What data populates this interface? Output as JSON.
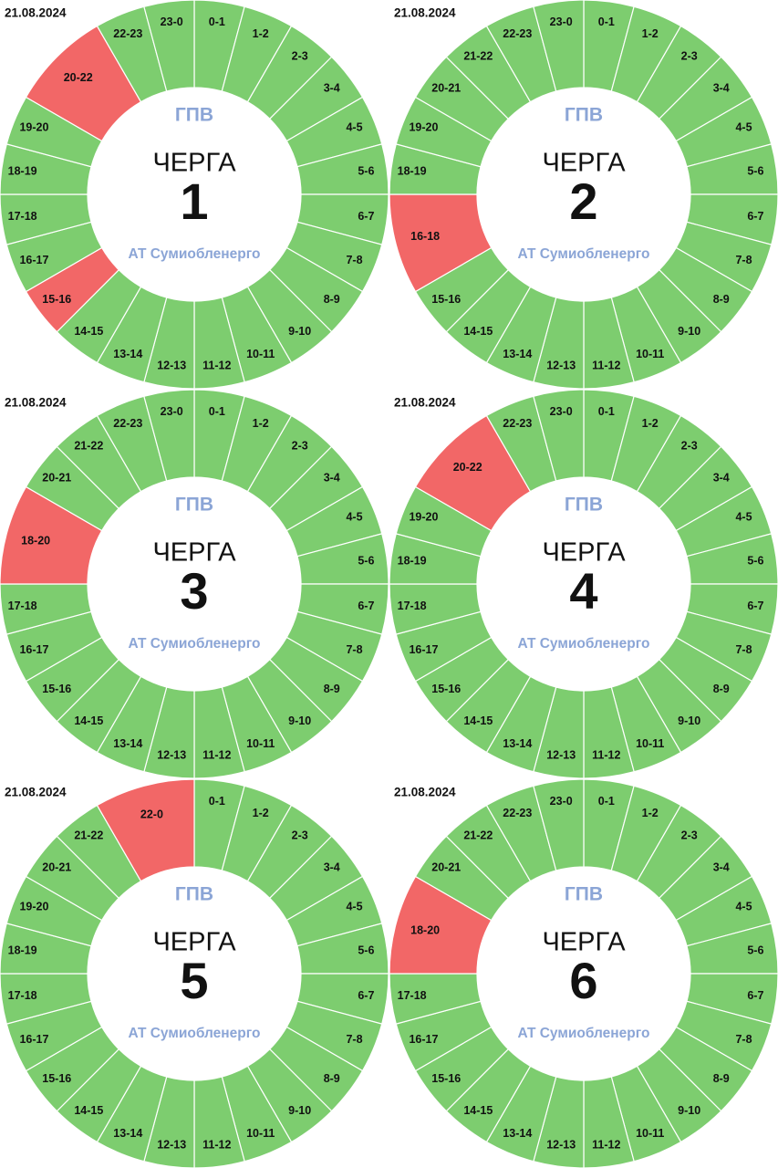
{
  "colors": {
    "on": "#7dcd6f",
    "off": "#f26767",
    "accent": "#8ba5d6",
    "divider": "#ffffff"
  },
  "center": {
    "top": "ГПВ",
    "queue_label": "ЧЕРГА",
    "org": "АТ Сумиобленерго"
  },
  "chart_data": [
    {
      "type": "pie",
      "title": "ЧЕРГА 1",
      "queue": "1",
      "date": "21.08.2024",
      "segments": [
        [
          "0-1",
          0,
          1,
          0
        ],
        [
          "1-2",
          1,
          2,
          0
        ],
        [
          "2-3",
          2,
          3,
          0
        ],
        [
          "3-4",
          3,
          4,
          0
        ],
        [
          "4-5",
          4,
          5,
          0
        ],
        [
          "5-6",
          5,
          6,
          0
        ],
        [
          "6-7",
          6,
          7,
          0
        ],
        [
          "7-8",
          7,
          8,
          0
        ],
        [
          "8-9",
          8,
          9,
          0
        ],
        [
          "9-10",
          9,
          10,
          0
        ],
        [
          "10-11",
          10,
          11,
          0
        ],
        [
          "11-12",
          11,
          12,
          0
        ],
        [
          "12-13",
          12,
          13,
          0
        ],
        [
          "13-14",
          13,
          14,
          0
        ],
        [
          "14-15",
          14,
          15,
          0
        ],
        [
          "15-16",
          15,
          16,
          1
        ],
        [
          "16-17",
          16,
          17,
          0
        ],
        [
          "17-18",
          17,
          18,
          0
        ],
        [
          "18-19",
          18,
          19,
          0
        ],
        [
          "19-20",
          19,
          20,
          0
        ],
        [
          "20-22",
          20,
          22,
          1
        ],
        [
          "22-23",
          22,
          23,
          0
        ],
        [
          "23-0",
          23,
          24,
          0
        ]
      ]
    },
    {
      "type": "pie",
      "title": "ЧЕРГА 2",
      "queue": "2",
      "date": "21.08.2024",
      "segments": [
        [
          "0-1",
          0,
          1,
          0
        ],
        [
          "1-2",
          1,
          2,
          0
        ],
        [
          "2-3",
          2,
          3,
          0
        ],
        [
          "3-4",
          3,
          4,
          0
        ],
        [
          "4-5",
          4,
          5,
          0
        ],
        [
          "5-6",
          5,
          6,
          0
        ],
        [
          "6-7",
          6,
          7,
          0
        ],
        [
          "7-8",
          7,
          8,
          0
        ],
        [
          "8-9",
          8,
          9,
          0
        ],
        [
          "9-10",
          9,
          10,
          0
        ],
        [
          "10-11",
          10,
          11,
          0
        ],
        [
          "11-12",
          11,
          12,
          0
        ],
        [
          "12-13",
          12,
          13,
          0
        ],
        [
          "13-14",
          13,
          14,
          0
        ],
        [
          "14-15",
          14,
          15,
          0
        ],
        [
          "15-16",
          15,
          16,
          0
        ],
        [
          "16-18",
          16,
          18,
          1
        ],
        [
          "18-19",
          18,
          19,
          0
        ],
        [
          "19-20",
          19,
          20,
          0
        ],
        [
          "20-21",
          20,
          21,
          0
        ],
        [
          "21-22",
          21,
          22,
          0
        ],
        [
          "22-23",
          22,
          23,
          0
        ],
        [
          "23-0",
          23,
          24,
          0
        ]
      ]
    },
    {
      "type": "pie",
      "title": "ЧЕРГА 3",
      "queue": "3",
      "date": "21.08.2024",
      "segments": [
        [
          "0-1",
          0,
          1,
          0
        ],
        [
          "1-2",
          1,
          2,
          0
        ],
        [
          "2-3",
          2,
          3,
          0
        ],
        [
          "3-4",
          3,
          4,
          0
        ],
        [
          "4-5",
          4,
          5,
          0
        ],
        [
          "5-6",
          5,
          6,
          0
        ],
        [
          "6-7",
          6,
          7,
          0
        ],
        [
          "7-8",
          7,
          8,
          0
        ],
        [
          "8-9",
          8,
          9,
          0
        ],
        [
          "9-10",
          9,
          10,
          0
        ],
        [
          "10-11",
          10,
          11,
          0
        ],
        [
          "11-12",
          11,
          12,
          0
        ],
        [
          "12-13",
          12,
          13,
          0
        ],
        [
          "13-14",
          13,
          14,
          0
        ],
        [
          "14-15",
          14,
          15,
          0
        ],
        [
          "15-16",
          15,
          16,
          0
        ],
        [
          "16-17",
          16,
          17,
          0
        ],
        [
          "17-18",
          17,
          18,
          0
        ],
        [
          "18-20",
          18,
          20,
          1
        ],
        [
          "20-21",
          20,
          21,
          0
        ],
        [
          "21-22",
          21,
          22,
          0
        ],
        [
          "22-23",
          22,
          23,
          0
        ],
        [
          "23-0",
          23,
          24,
          0
        ]
      ]
    },
    {
      "type": "pie",
      "title": "ЧЕРГА 4",
      "queue": "4",
      "date": "21.08.2024",
      "segments": [
        [
          "0-1",
          0,
          1,
          0
        ],
        [
          "1-2",
          1,
          2,
          0
        ],
        [
          "2-3",
          2,
          3,
          0
        ],
        [
          "3-4",
          3,
          4,
          0
        ],
        [
          "4-5",
          4,
          5,
          0
        ],
        [
          "5-6",
          5,
          6,
          0
        ],
        [
          "6-7",
          6,
          7,
          0
        ],
        [
          "7-8",
          7,
          8,
          0
        ],
        [
          "8-9",
          8,
          9,
          0
        ],
        [
          "9-10",
          9,
          10,
          0
        ],
        [
          "10-11",
          10,
          11,
          0
        ],
        [
          "11-12",
          11,
          12,
          0
        ],
        [
          "12-13",
          12,
          13,
          0
        ],
        [
          "13-14",
          13,
          14,
          0
        ],
        [
          "14-15",
          14,
          15,
          0
        ],
        [
          "15-16",
          15,
          16,
          0
        ],
        [
          "16-17",
          16,
          17,
          0
        ],
        [
          "17-18",
          17,
          18,
          0
        ],
        [
          "18-19",
          18,
          19,
          0
        ],
        [
          "19-20",
          19,
          20,
          0
        ],
        [
          "20-22",
          20,
          22,
          1
        ],
        [
          "22-23",
          22,
          23,
          0
        ],
        [
          "23-0",
          23,
          24,
          0
        ]
      ]
    },
    {
      "type": "pie",
      "title": "ЧЕРГА 5",
      "queue": "5",
      "date": "21.08.2024",
      "segments": [
        [
          "0-1",
          0,
          1,
          0
        ],
        [
          "1-2",
          1,
          2,
          0
        ],
        [
          "2-3",
          2,
          3,
          0
        ],
        [
          "3-4",
          3,
          4,
          0
        ],
        [
          "4-5",
          4,
          5,
          0
        ],
        [
          "5-6",
          5,
          6,
          0
        ],
        [
          "6-7",
          6,
          7,
          0
        ],
        [
          "7-8",
          7,
          8,
          0
        ],
        [
          "8-9",
          8,
          9,
          0
        ],
        [
          "9-10",
          9,
          10,
          0
        ],
        [
          "10-11",
          10,
          11,
          0
        ],
        [
          "11-12",
          11,
          12,
          0
        ],
        [
          "12-13",
          12,
          13,
          0
        ],
        [
          "13-14",
          13,
          14,
          0
        ],
        [
          "14-15",
          14,
          15,
          0
        ],
        [
          "15-16",
          15,
          16,
          0
        ],
        [
          "16-17",
          16,
          17,
          0
        ],
        [
          "17-18",
          17,
          18,
          0
        ],
        [
          "18-19",
          18,
          19,
          0
        ],
        [
          "19-20",
          19,
          20,
          0
        ],
        [
          "20-21",
          20,
          21,
          0
        ],
        [
          "21-22",
          21,
          22,
          0
        ],
        [
          "22-0",
          22,
          24,
          1
        ]
      ]
    },
    {
      "type": "pie",
      "title": "ЧЕРГА 6",
      "queue": "6",
      "date": "21.08.2024",
      "segments": [
        [
          "0-1",
          0,
          1,
          0
        ],
        [
          "1-2",
          1,
          2,
          0
        ],
        [
          "2-3",
          2,
          3,
          0
        ],
        [
          "3-4",
          3,
          4,
          0
        ],
        [
          "4-5",
          4,
          5,
          0
        ],
        [
          "5-6",
          5,
          6,
          0
        ],
        [
          "6-7",
          6,
          7,
          0
        ],
        [
          "7-8",
          7,
          8,
          0
        ],
        [
          "8-9",
          8,
          9,
          0
        ],
        [
          "9-10",
          9,
          10,
          0
        ],
        [
          "10-11",
          10,
          11,
          0
        ],
        [
          "11-12",
          11,
          12,
          0
        ],
        [
          "12-13",
          12,
          13,
          0
        ],
        [
          "13-14",
          13,
          14,
          0
        ],
        [
          "14-15",
          14,
          15,
          0
        ],
        [
          "15-16",
          15,
          16,
          0
        ],
        [
          "16-17",
          16,
          17,
          0
        ],
        [
          "17-18",
          17,
          18,
          0
        ],
        [
          "18-20",
          18,
          20,
          1
        ],
        [
          "20-21",
          20,
          21,
          0
        ],
        [
          "21-22",
          21,
          22,
          0
        ],
        [
          "22-23",
          22,
          23,
          0
        ],
        [
          "23-0",
          23,
          24,
          0
        ]
      ]
    }
  ]
}
